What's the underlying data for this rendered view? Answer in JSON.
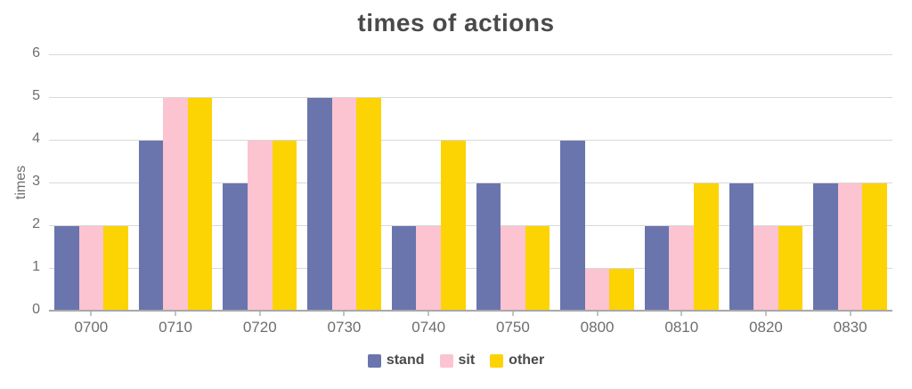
{
  "chart_data": {
    "type": "bar",
    "title": "times of actions",
    "xlabel": "",
    "ylabel": "times",
    "categories": [
      "0700",
      "0710",
      "0720",
      "0730",
      "0740",
      "0750",
      "0800",
      "0810",
      "0820",
      "0830"
    ],
    "series": [
      {
        "name": "stand",
        "color": "#6a75ae",
        "values": [
          2,
          4,
          3,
          5,
          2,
          3,
          4,
          2,
          3,
          3
        ]
      },
      {
        "name": "sit",
        "color": "#fcc3d0",
        "values": [
          2,
          5,
          4,
          5,
          2,
          2,
          1,
          2,
          2,
          3
        ]
      },
      {
        "name": "other",
        "color": "#fcd303",
        "values": [
          2,
          5,
          4,
          5,
          4,
          2,
          1,
          3,
          2,
          3
        ]
      }
    ],
    "ylim": [
      0,
      6
    ],
    "yticks": [
      0,
      1,
      2,
      3,
      4,
      5,
      6
    ],
    "grid": "horizontal",
    "legend_position": "bottom",
    "colors": {
      "title_text": "#4a4a4a",
      "axis_text": "#6e6e6e",
      "gridline": "#d9d9d9",
      "baseline": "#a8a8a8",
      "tick_mark": "#c4c4c4",
      "legend_text": "#4a4a4a",
      "background": "#ffffff"
    }
  }
}
